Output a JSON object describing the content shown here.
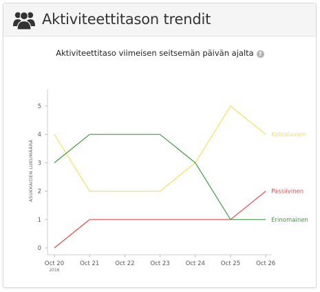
{
  "header": {
    "title": "Aktiviteettitason trendit",
    "icon": "users-group-icon"
  },
  "chart_data": {
    "type": "line",
    "title": "Aktiviteettitaso viimeisen seitsemän päivän ajalta",
    "ylabel": "ASUKKAIDEN LUKUMÄÄRÄ",
    "xlabel": "",
    "categories": [
      "Oct 20",
      "Oct 21",
      "Oct 22",
      "Oct 23",
      "Oct 24",
      "Oct 25",
      "Oct 26"
    ],
    "year_label": "2016",
    "yticks": [
      "0",
      "1",
      "2",
      "3",
      "4",
      "5"
    ],
    "ylim": [
      0,
      5.5
    ],
    "series": [
      {
        "name": "Kohtalainen",
        "color": "#f5e15a",
        "values": [
          4,
          2,
          2,
          2,
          3,
          5,
          4
        ]
      },
      {
        "name": "Passiivinen",
        "color": "#e04848",
        "values": [
          0,
          1,
          1,
          1,
          1,
          1,
          2
        ]
      },
      {
        "name": "Erinomainen",
        "color": "#3e9a3e",
        "values": [
          3,
          4,
          4,
          4,
          3,
          1,
          1
        ]
      }
    ],
    "grid": false,
    "legend": "inline-right"
  }
}
